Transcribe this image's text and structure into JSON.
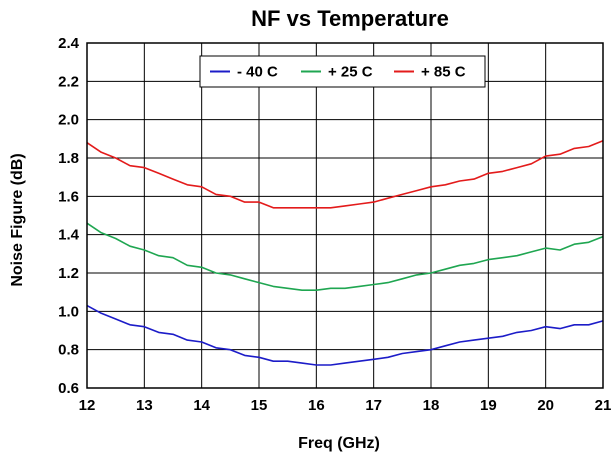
{
  "chart_data": {
    "type": "line",
    "title": "NF vs Temperature",
    "xlabel": "Freq (GHz)",
    "ylabel": "Noise Figure (dB)",
    "xlim": [
      12,
      21
    ],
    "ylim": [
      0.6,
      2.4
    ],
    "xticks": [
      12,
      13,
      14,
      15,
      16,
      17,
      18,
      19,
      20,
      21
    ],
    "yticks": [
      0.6,
      0.8,
      1.0,
      1.2,
      1.4,
      1.6,
      1.8,
      2.0,
      2.2,
      2.4
    ],
    "xtick_labels": [
      "12",
      "13",
      "14",
      "15",
      "16",
      "17",
      "18",
      "19",
      "20",
      "21"
    ],
    "ytick_labels": [
      "0.6",
      "0.8",
      "1.0",
      "1.2",
      "1.4",
      "1.6",
      "1.8",
      "2.0",
      "2.2",
      "2.4"
    ],
    "grid": true,
    "legend_position": "top-center",
    "x": [
      12.0,
      12.25,
      12.5,
      12.75,
      13.0,
      13.25,
      13.5,
      13.75,
      14.0,
      14.25,
      14.5,
      14.75,
      15.0,
      15.25,
      15.5,
      15.75,
      16.0,
      16.25,
      16.5,
      16.75,
      17.0,
      17.25,
      17.5,
      17.75,
      18.0,
      18.25,
      18.5,
      18.75,
      19.0,
      19.25,
      19.5,
      19.75,
      20.0,
      20.25,
      20.5,
      20.75,
      21.0
    ],
    "series": [
      {
        "name": "- 40 C",
        "color": "#1c1cc8",
        "values": [
          1.03,
          0.99,
          0.96,
          0.93,
          0.92,
          0.89,
          0.88,
          0.85,
          0.84,
          0.81,
          0.8,
          0.77,
          0.76,
          0.74,
          0.74,
          0.73,
          0.72,
          0.72,
          0.73,
          0.74,
          0.75,
          0.76,
          0.78,
          0.79,
          0.8,
          0.82,
          0.84,
          0.85,
          0.86,
          0.87,
          0.89,
          0.9,
          0.92,
          0.91,
          0.93,
          0.93,
          0.95
        ]
      },
      {
        "name": "+ 25 C",
        "color": "#1fa651",
        "values": [
          1.46,
          1.41,
          1.38,
          1.34,
          1.32,
          1.29,
          1.28,
          1.24,
          1.23,
          1.2,
          1.19,
          1.17,
          1.15,
          1.13,
          1.12,
          1.11,
          1.11,
          1.12,
          1.12,
          1.13,
          1.14,
          1.15,
          1.17,
          1.19,
          1.2,
          1.22,
          1.24,
          1.25,
          1.27,
          1.28,
          1.29,
          1.31,
          1.33,
          1.32,
          1.35,
          1.36,
          1.39
        ]
      },
      {
        "name": "+ 85 C",
        "color": "#e31b1b",
        "values": [
          1.88,
          1.83,
          1.8,
          1.76,
          1.75,
          1.72,
          1.69,
          1.66,
          1.65,
          1.61,
          1.6,
          1.57,
          1.57,
          1.54,
          1.54,
          1.54,
          1.54,
          1.54,
          1.55,
          1.56,
          1.57,
          1.59,
          1.61,
          1.63,
          1.65,
          1.66,
          1.68,
          1.69,
          1.72,
          1.73,
          1.75,
          1.77,
          1.81,
          1.82,
          1.85,
          1.86,
          1.89
        ]
      }
    ]
  }
}
